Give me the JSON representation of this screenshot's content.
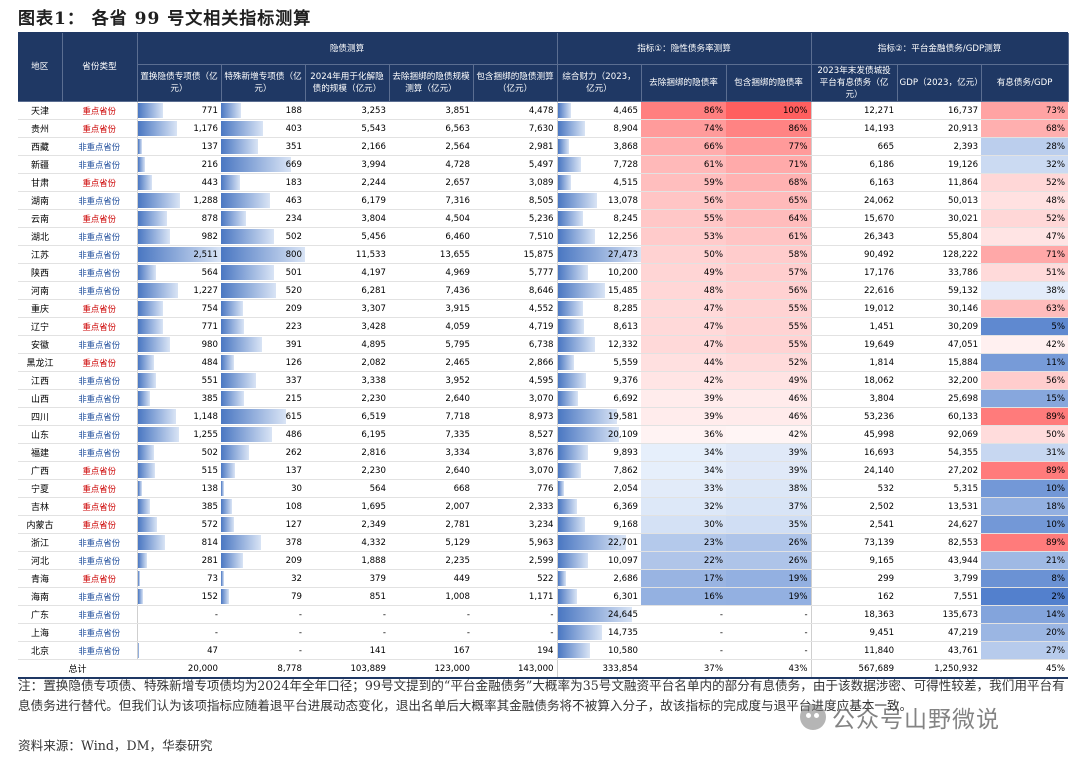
{
  "title": "图表1：  各省 99 号文相关指标测算",
  "groups": {
    "left_region": "地区",
    "left_type": "省份类型",
    "hidden_debt": "隐债测算",
    "indicator1": "指标①：隐性债务率测算",
    "indicator2": "指标②：平台金融债务/GDP测算"
  },
  "columns": [
    "置换隐债专项债（亿元）",
    "特殊新增专项债（亿元）",
    "2024年用于化解隐债的规模（亿元）",
    "去除捆绑的隐债规模测算（亿元）",
    "包含捆绑的隐债测算（亿元）",
    "综合财力（2023，亿元）",
    "去除捆绑的隐债率",
    "包含捆绑的隐债率",
    "2023年末发债城投平台有息债务（亿元）",
    "GDP（2023，亿元）",
    "有息债务/GDP"
  ],
  "rows": [
    [
      "天津",
      "重点省份",
      "771",
      "188",
      "3,253",
      "3,851",
      "4,478",
      "4,465",
      "86%",
      "100%",
      "12,271",
      "16,737",
      "73%"
    ],
    [
      "贵州",
      "重点省份",
      "1,176",
      "403",
      "5,543",
      "6,563",
      "7,630",
      "8,904",
      "74%",
      "86%",
      "14,193",
      "20,913",
      "68%"
    ],
    [
      "西藏",
      "非重点省份",
      "137",
      "351",
      "2,166",
      "2,564",
      "2,981",
      "3,868",
      "66%",
      "77%",
      "665",
      "2,393",
      "28%"
    ],
    [
      "新疆",
      "非重点省份",
      "216",
      "669",
      "3,994",
      "4,728",
      "5,497",
      "7,728",
      "61%",
      "71%",
      "6,186",
      "19,126",
      "32%"
    ],
    [
      "甘肃",
      "重点省份",
      "443",
      "183",
      "2,244",
      "2,657",
      "3,089",
      "4,515",
      "59%",
      "68%",
      "6,163",
      "11,864",
      "52%"
    ],
    [
      "湖南",
      "非重点省份",
      "1,288",
      "463",
      "6,179",
      "7,316",
      "8,505",
      "13,078",
      "56%",
      "65%",
      "24,062",
      "50,013",
      "48%"
    ],
    [
      "云南",
      "重点省份",
      "878",
      "234",
      "3,804",
      "4,504",
      "5,236",
      "8,245",
      "55%",
      "64%",
      "15,670",
      "30,021",
      "52%"
    ],
    [
      "湖北",
      "非重点省份",
      "982",
      "502",
      "5,456",
      "6,460",
      "7,510",
      "12,256",
      "53%",
      "61%",
      "26,343",
      "55,804",
      "47%"
    ],
    [
      "江苏",
      "非重点省份",
      "2,511",
      "800",
      "11,533",
      "13,655",
      "15,875",
      "27,473",
      "50%",
      "58%",
      "90,492",
      "128,222",
      "71%"
    ],
    [
      "陕西",
      "非重点省份",
      "564",
      "501",
      "4,197",
      "4,969",
      "5,777",
      "10,200",
      "49%",
      "57%",
      "17,176",
      "33,786",
      "51%"
    ],
    [
      "河南",
      "非重点省份",
      "1,227",
      "520",
      "6,281",
      "7,436",
      "8,646",
      "15,485",
      "48%",
      "56%",
      "22,616",
      "59,132",
      "38%"
    ],
    [
      "重庆",
      "重点省份",
      "754",
      "209",
      "3,307",
      "3,915",
      "4,552",
      "8,285",
      "47%",
      "55%",
      "19,012",
      "30,146",
      "63%"
    ],
    [
      "辽宁",
      "重点省份",
      "771",
      "223",
      "3,428",
      "4,059",
      "4,719",
      "8,613",
      "47%",
      "55%",
      "1,451",
      "30,209",
      "5%"
    ],
    [
      "安徽",
      "非重点省份",
      "980",
      "391",
      "4,895",
      "5,795",
      "6,738",
      "12,332",
      "47%",
      "55%",
      "19,649",
      "47,051",
      "42%"
    ],
    [
      "黑龙江",
      "重点省份",
      "484",
      "126",
      "2,082",
      "2,465",
      "2,866",
      "5,559",
      "44%",
      "52%",
      "1,814",
      "15,884",
      "11%"
    ],
    [
      "江西",
      "非重点省份",
      "551",
      "337",
      "3,338",
      "3,952",
      "4,595",
      "9,376",
      "42%",
      "49%",
      "18,062",
      "32,200",
      "56%"
    ],
    [
      "山西",
      "非重点省份",
      "385",
      "215",
      "2,230",
      "2,640",
      "3,070",
      "6,692",
      "39%",
      "46%",
      "3,804",
      "25,698",
      "15%"
    ],
    [
      "四川",
      "非重点省份",
      "1,148",
      "615",
      "6,519",
      "7,718",
      "8,973",
      "19,581",
      "39%",
      "46%",
      "53,236",
      "60,133",
      "89%"
    ],
    [
      "山东",
      "非重点省份",
      "1,255",
      "486",
      "6,195",
      "7,335",
      "8,527",
      "20,109",
      "36%",
      "42%",
      "45,998",
      "92,069",
      "50%"
    ],
    [
      "福建",
      "非重点省份",
      "502",
      "262",
      "2,816",
      "3,334",
      "3,876",
      "9,893",
      "34%",
      "39%",
      "16,693",
      "54,355",
      "31%"
    ],
    [
      "广西",
      "重点省份",
      "515",
      "137",
      "2,230",
      "2,640",
      "3,070",
      "7,862",
      "34%",
      "39%",
      "24,140",
      "27,202",
      "89%"
    ],
    [
      "宁夏",
      "重点省份",
      "138",
      "30",
      "564",
      "668",
      "776",
      "2,054",
      "33%",
      "38%",
      "532",
      "5,315",
      "10%"
    ],
    [
      "吉林",
      "重点省份",
      "385",
      "108",
      "1,695",
      "2,007",
      "2,333",
      "6,369",
      "32%",
      "37%",
      "2,502",
      "13,531",
      "18%"
    ],
    [
      "内蒙古",
      "重点省份",
      "572",
      "127",
      "2,349",
      "2,781",
      "3,234",
      "9,168",
      "30%",
      "35%",
      "2,541",
      "24,627",
      "10%"
    ],
    [
      "浙江",
      "非重点省份",
      "814",
      "378",
      "4,332",
      "5,129",
      "5,963",
      "22,701",
      "23%",
      "26%",
      "73,139",
      "82,553",
      "89%"
    ],
    [
      "河北",
      "非重点省份",
      "281",
      "209",
      "1,888",
      "2,235",
      "2,599",
      "10,097",
      "22%",
      "26%",
      "9,165",
      "43,944",
      "21%"
    ],
    [
      "青海",
      "重点省份",
      "73",
      "32",
      "379",
      "449",
      "522",
      "2,686",
      "17%",
      "19%",
      "299",
      "3,799",
      "8%"
    ],
    [
      "海南",
      "非重点省份",
      "152",
      "79",
      "851",
      "1,008",
      "1,171",
      "6,301",
      "16%",
      "19%",
      "162",
      "7,551",
      "2%"
    ],
    [
      "广东",
      "非重点省份",
      "-",
      "-",
      "-",
      "-",
      "-",
      "24,645",
      "-",
      "-",
      "18,363",
      "135,673",
      "14%"
    ],
    [
      "上海",
      "非重点省份",
      "-",
      "-",
      "-",
      "-",
      "-",
      "14,735",
      "-",
      "-",
      "9,451",
      "47,219",
      "20%"
    ],
    [
      "北京",
      "非重点省份",
      "47",
      "-",
      "141",
      "167",
      "194",
      "10,580",
      "-",
      "-",
      "11,840",
      "43,761",
      "27%"
    ]
  ],
  "total": [
    "总计",
    "",
    "20,000",
    "8,778",
    "103,889",
    "123,000",
    "143,000",
    "333,854",
    "37%",
    "43%",
    "567,689",
    "1,250,932",
    "45%"
  ],
  "notes": "注：置换隐债专项债、特殊新增专项债均为2024年全年口径；99号文提到的“平台金融债务”大概率为35号文融资平台名单内的部分有息债务，由于该数据涉密、可得性较差，我们用平台有息债务进行替代。但我们认为该项指标应随着退平台进展动态变化，退出名单后大概率其金融债务将不被算入分子，故该指标的完成度与退平台进度应基本一致。",
  "source": "资料来源：Wind，DM，华泰研究",
  "watermark": "公众号山野微说",
  "colors": {
    "header_bg": "#1f3864",
    "key": "#cc0000",
    "nonkey": "#1f4e9c",
    "bar": "#4a77c2"
  }
}
